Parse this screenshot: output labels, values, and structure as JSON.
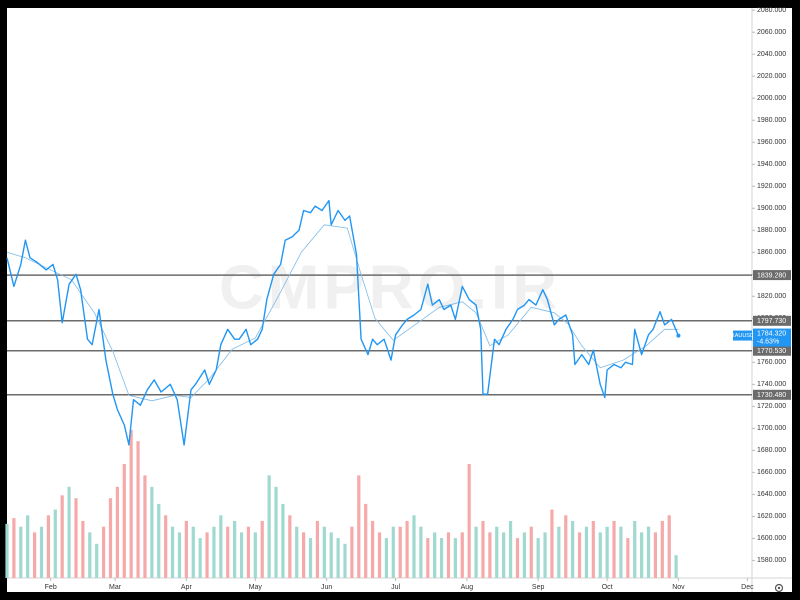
{
  "chart_data": {
    "type": "line",
    "watermark": "CMPRO.IR",
    "symbol": "XAUUSD",
    "change": "-4.63%",
    "current": {
      "value": 1784.32,
      "label": "1784.320"
    },
    "current_color": "#2196f3",
    "xlim": [
      12,
      336
    ],
    "xticks": [
      {
        "value": 31,
        "label": "Feb"
      },
      {
        "value": 59,
        "label": "Mar"
      },
      {
        "value": 90,
        "label": "Apr"
      },
      {
        "value": 120,
        "label": "May"
      },
      {
        "value": 151,
        "label": "Jun"
      },
      {
        "value": 181,
        "label": "Jul"
      },
      {
        "value": 212,
        "label": "Aug"
      },
      {
        "value": 243,
        "label": "Sep"
      },
      {
        "value": 273,
        "label": "Oct"
      },
      {
        "value": 304,
        "label": "Nov"
      },
      {
        "value": 334,
        "label": "Dec"
      }
    ],
    "ylim": [
      1564,
      2082
    ],
    "yticks": [
      {
        "value": 1580,
        "label": "1580.000"
      },
      {
        "value": 1600,
        "label": "1600.000"
      },
      {
        "value": 1620,
        "label": "1620.000"
      },
      {
        "value": 1640,
        "label": "1640.000"
      },
      {
        "value": 1660,
        "label": "1660.000"
      },
      {
        "value": 1680,
        "label": "1680.000"
      },
      {
        "value": 1700,
        "label": "1700.000"
      },
      {
        "value": 1720,
        "label": "1720.000"
      },
      {
        "value": 1740,
        "label": "1740.000"
      },
      {
        "value": 1760,
        "label": "1760.000"
      },
      {
        "value": 1780,
        "label": "1780.000"
      },
      {
        "value": 1800,
        "label": "1800.000"
      },
      {
        "value": 1820,
        "label": "1820.000"
      },
      {
        "value": 1840,
        "label": "1840.000"
      },
      {
        "value": 1860,
        "label": "1860.000"
      },
      {
        "value": 1880,
        "label": "1880.000"
      },
      {
        "value": 1900,
        "label": "1900.000"
      },
      {
        "value": 1920,
        "label": "1920.000"
      },
      {
        "value": 1940,
        "label": "1940.000"
      },
      {
        "value": 1960,
        "label": "1960.000"
      },
      {
        "value": 1980,
        "label": "1980.000"
      },
      {
        "value": 2000,
        "label": "2000.000"
      },
      {
        "value": 2020,
        "label": "2020.000"
      },
      {
        "value": 2040,
        "label": "2040.000"
      },
      {
        "value": 2060,
        "label": "2060.000"
      },
      {
        "value": 2080,
        "label": "2080.000"
      }
    ],
    "y2lim": [
      0,
      100
    ],
    "levels": [
      {
        "value": 1839.28,
        "label": "1839.280"
      },
      {
        "value": 1797.73,
        "label": "1797.730"
      },
      {
        "value": 1770.53,
        "label": "1770.530"
      },
      {
        "value": 1730.48,
        "label": "1730.480"
      }
    ],
    "level_color": "#6b6b6b",
    "series": [
      {
        "type": "bar",
        "axis": "y2",
        "color": "#9fd9cf",
        "x": [
          12,
          18,
          21,
          27,
          33,
          39,
          48,
          51,
          75,
          78,
          84,
          87,
          93,
          96,
          102,
          105,
          111,
          114,
          120,
          126,
          129,
          132,
          138,
          144,
          150,
          153,
          156,
          159,
          177,
          180,
          189,
          192,
          198,
          201,
          207,
          216,
          225,
          228,
          231,
          237,
          243,
          246,
          252,
          258,
          264,
          270,
          273,
          279,
          285,
          288,
          291,
          303
        ],
        "values": [
          9.5,
          9,
          11,
          9,
          12,
          16,
          8,
          6,
          16,
          13,
          9,
          8,
          9,
          7,
          9,
          11,
          10,
          8,
          8,
          18,
          16,
          13,
          9,
          7,
          9,
          8,
          7,
          6,
          7,
          9,
          11,
          9,
          8,
          7,
          7,
          9,
          9,
          8,
          10,
          8,
          7,
          8,
          9,
          10,
          9,
          8,
          9,
          9,
          10,
          8,
          9,
          4
        ]
      },
      {
        "type": "bar",
        "axis": "y2",
        "color": "#f5a9a9",
        "x": [
          15,
          24,
          30,
          36,
          42,
          45,
          54,
          57,
          60,
          63,
          66,
          69,
          72,
          81,
          90,
          99,
          108,
          117,
          123,
          135,
          141,
          147,
          162,
          165,
          168,
          171,
          174,
          183,
          186,
          195,
          204,
          210,
          213,
          219,
          222,
          234,
          240,
          249,
          255,
          261,
          267,
          276,
          282,
          294,
          297,
          300
        ],
        "values": [
          10.5,
          8,
          11,
          14.5,
          14,
          10,
          9,
          14,
          16,
          20,
          26,
          24,
          18,
          11,
          10,
          8,
          9,
          9,
          10,
          11,
          8,
          10,
          9,
          18,
          13,
          10,
          8,
          9,
          10,
          7,
          8,
          8,
          20,
          10,
          8,
          7,
          9,
          12,
          11,
          8,
          10,
          10,
          7,
          8,
          10,
          11
        ]
      },
      {
        "type": "line",
        "color": "#7fbbe8",
        "x": [
          12,
          20,
          30,
          40,
          50,
          58,
          65,
          75,
          85,
          92,
          100,
          110,
          120,
          130,
          140,
          150,
          160,
          166,
          172,
          180,
          190,
          200,
          210,
          216,
          222,
          230,
          240,
          250,
          256,
          262,
          270,
          280,
          290,
          298,
          304
        ],
        "values": [
          1860,
          1855,
          1845,
          1835,
          1805,
          1770,
          1730,
          1725,
          1730,
          1728,
          1745,
          1772,
          1782,
          1820,
          1860,
          1885,
          1882,
          1840,
          1800,
          1780,
          1795,
          1810,
          1815,
          1805,
          1775,
          1785,
          1810,
          1805,
          1795,
          1775,
          1755,
          1762,
          1775,
          1790,
          1790
        ]
      },
      {
        "type": "line",
        "name": "XAUUSD",
        "color": "#2196f3",
        "x": [
          12,
          15,
          18,
          20,
          22,
          25,
          29,
          32,
          34,
          36,
          39,
          42,
          44,
          47,
          49,
          52,
          55,
          58,
          60,
          63,
          65,
          67,
          70,
          73,
          76,
          79,
          83,
          86,
          89,
          92,
          94,
          98,
          100,
          103,
          105,
          108,
          111,
          113,
          116,
          118,
          121,
          123,
          125,
          128,
          131,
          133,
          136,
          139,
          141,
          144,
          146,
          149,
          152,
          153,
          156,
          159,
          161,
          164,
          166,
          169,
          171,
          173,
          176,
          179,
          181,
          184,
          186,
          189,
          192,
          195,
          197,
          200,
          202,
          205,
          207,
          210,
          213,
          216,
          218,
          219,
          221,
          224,
          226,
          229,
          232,
          234,
          237,
          239,
          242,
          245,
          247,
          250,
          252,
          255,
          258,
          259,
          262,
          265,
          267,
          270,
          272,
          273,
          276,
          279,
          281,
          284,
          285,
          288,
          291,
          293,
          296,
          298,
          301,
          304
        ],
        "values": [
          1855,
          1829,
          1849,
          1871,
          1855,
          1851,
          1844,
          1849,
          1835,
          1796,
          1831,
          1840,
          1826,
          1781,
          1776,
          1808,
          1762,
          1731,
          1717,
          1703,
          1685,
          1726,
          1721,
          1735,
          1744,
          1733,
          1740,
          1726,
          1685,
          1735,
          1740,
          1753,
          1740,
          1753,
          1776,
          1790,
          1781,
          1781,
          1790,
          1776,
          1781,
          1790,
          1817,
          1840,
          1849,
          1871,
          1874,
          1880,
          1898,
          1896,
          1902,
          1898,
          1907,
          1885,
          1898,
          1889,
          1893,
          1858,
          1781,
          1767,
          1781,
          1776,
          1781,
          1762,
          1785,
          1794,
          1799,
          1803,
          1808,
          1831,
          1812,
          1817,
          1808,
          1812,
          1799,
          1829,
          1817,
          1812,
          1790,
          1731,
          1731,
          1781,
          1776,
          1790,
          1799,
          1808,
          1812,
          1817,
          1812,
          1826,
          1817,
          1794,
          1799,
          1803,
          1785,
          1758,
          1767,
          1758,
          1771,
          1740,
          1728,
          1753,
          1758,
          1755,
          1760,
          1758,
          1790,
          1767,
          1785,
          1790,
          1806,
          1794,
          1799,
          1784.32
        ]
      }
    ]
  }
}
